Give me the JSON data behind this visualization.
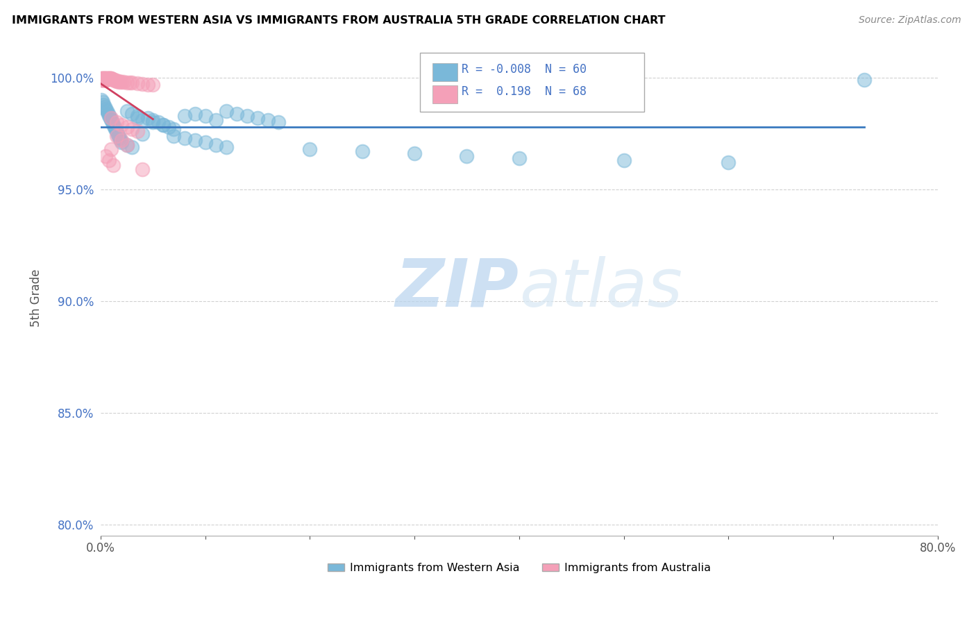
{
  "title": "IMMIGRANTS FROM WESTERN ASIA VS IMMIGRANTS FROM AUSTRALIA 5TH GRADE CORRELATION CHART",
  "source": "Source: ZipAtlas.com",
  "ylabel": "5th Grade",
  "y_ticks": [
    80.0,
    85.0,
    90.0,
    95.0,
    100.0
  ],
  "x_min": 0.0,
  "x_max": 0.8,
  "y_min": 0.795,
  "y_max": 1.008,
  "R_blue": -0.008,
  "R_pink": 0.198,
  "N_blue": 60,
  "N_pink": 68,
  "legend_label_blue": "Immigrants from Western Asia",
  "legend_label_pink": "Immigrants from Australia",
  "blue_color": "#7ab8d9",
  "pink_color": "#f4a0b8",
  "trend_blue_color": "#3a7abf",
  "trend_pink_color": "#d04060",
  "blue_scatter_x": [
    0.001,
    0.002,
    0.003,
    0.004,
    0.005,
    0.006,
    0.007,
    0.008,
    0.009,
    0.01,
    0.011,
    0.012,
    0.013,
    0.014,
    0.015,
    0.016,
    0.017,
    0.018,
    0.019,
    0.02,
    0.025,
    0.03,
    0.035,
    0.04,
    0.045,
    0.05,
    0.055,
    0.06,
    0.065,
    0.07,
    0.08,
    0.09,
    0.1,
    0.11,
    0.12,
    0.13,
    0.14,
    0.15,
    0.16,
    0.17,
    0.025,
    0.03,
    0.035,
    0.04,
    0.05,
    0.06,
    0.07,
    0.08,
    0.09,
    0.1,
    0.11,
    0.12,
    0.2,
    0.25,
    0.3,
    0.35,
    0.4,
    0.5,
    0.6,
    0.73
  ],
  "blue_scatter_y": [
    0.99,
    0.989,
    0.988,
    0.987,
    0.986,
    0.985,
    0.984,
    0.983,
    0.982,
    0.981,
    0.98,
    0.979,
    0.978,
    0.977,
    0.976,
    0.975,
    0.974,
    0.973,
    0.972,
    0.971,
    0.985,
    0.984,
    0.983,
    0.975,
    0.982,
    0.981,
    0.98,
    0.979,
    0.978,
    0.977,
    0.983,
    0.984,
    0.983,
    0.981,
    0.985,
    0.984,
    0.983,
    0.982,
    0.981,
    0.98,
    0.97,
    0.969,
    0.982,
    0.981,
    0.98,
    0.979,
    0.974,
    0.973,
    0.972,
    0.971,
    0.97,
    0.969,
    0.968,
    0.967,
    0.966,
    0.965,
    0.964,
    0.963,
    0.962,
    0.999
  ],
  "pink_scatter_x": [
    0.001,
    0.001,
    0.001,
    0.001,
    0.001,
    0.002,
    0.002,
    0.002,
    0.002,
    0.002,
    0.003,
    0.003,
    0.003,
    0.003,
    0.003,
    0.004,
    0.004,
    0.004,
    0.004,
    0.004,
    0.005,
    0.005,
    0.005,
    0.005,
    0.005,
    0.006,
    0.006,
    0.006,
    0.007,
    0.007,
    0.007,
    0.008,
    0.008,
    0.009,
    0.009,
    0.01,
    0.01,
    0.011,
    0.012,
    0.013,
    0.014,
    0.015,
    0.016,
    0.017,
    0.018,
    0.02,
    0.022,
    0.025,
    0.028,
    0.03,
    0.035,
    0.04,
    0.045,
    0.05,
    0.01,
    0.015,
    0.02,
    0.025,
    0.03,
    0.035,
    0.015,
    0.02,
    0.025,
    0.01,
    0.005,
    0.008,
    0.012,
    0.04
  ],
  "pink_scatter_y": [
    0.9998,
    0.9996,
    0.9994,
    0.9992,
    0.999,
    0.9998,
    0.9996,
    0.9994,
    0.9992,
    0.999,
    0.9998,
    0.9996,
    0.9994,
    0.9992,
    0.999,
    0.9998,
    0.9996,
    0.9994,
    0.9992,
    0.999,
    0.9998,
    0.9996,
    0.9994,
    0.9992,
    0.999,
    0.9998,
    0.9996,
    0.9994,
    0.9998,
    0.9996,
    0.9994,
    0.9998,
    0.9996,
    0.9998,
    0.9996,
    0.9998,
    0.9996,
    0.9994,
    0.9992,
    0.999,
    0.9988,
    0.9986,
    0.9985,
    0.9984,
    0.9983,
    0.9982,
    0.9981,
    0.998,
    0.9979,
    0.9978,
    0.9975,
    0.9972,
    0.997,
    0.9968,
    0.982,
    0.98,
    0.979,
    0.978,
    0.977,
    0.976,
    0.974,
    0.972,
    0.97,
    0.968,
    0.965,
    0.963,
    0.961,
    0.959
  ],
  "watermark_zip": "ZIP",
  "watermark_atlas": "atlas",
  "dpi": 100,
  "figsize": [
    14.06,
    8.92
  ]
}
